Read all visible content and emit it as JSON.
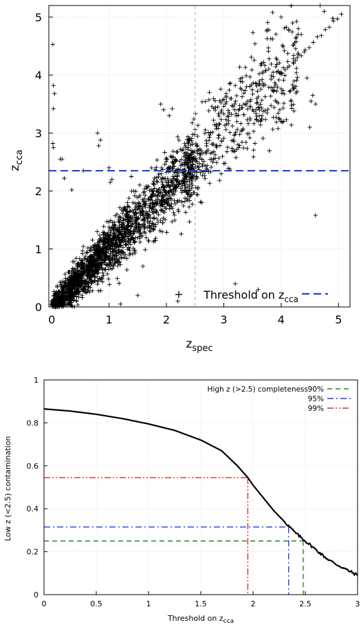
{
  "chart_data": [
    {
      "type": "scatter",
      "title": "",
      "xlabel": "z",
      "xlabel_sub": "spec",
      "ylabel": "z",
      "ylabel_sub": "cca",
      "xlim": [
        -0.05,
        5.2
      ],
      "ylim": [
        0,
        5.2
      ],
      "xticks": [
        "0",
        "1",
        "2",
        "3",
        "4",
        "5"
      ],
      "yticks": [
        "0",
        "1",
        "2",
        "3",
        "4",
        "5"
      ],
      "grid": true,
      "marker": "+",
      "vertical_reference_x": 2.5,
      "threshold_y": 2.35,
      "legend_position": "bottom-right",
      "series": [
        {
          "name": "Threshold on z",
          "name_sub": "cca",
          "color": "#1f3fe0",
          "style": "dashed",
          "description_points": "several thousand (z_spec, z_cca) points, clustered along z_cca ≈ z_spec with outliers"
        }
      ],
      "sample_points": [
        [
          0.02,
          4.53
        ],
        [
          0.03,
          3.82
        ],
        [
          0.05,
          3.68
        ],
        [
          0.03,
          3.42
        ],
        [
          0.02,
          2.82
        ],
        [
          0.03,
          2.75
        ],
        [
          0.18,
          2.55
        ],
        [
          0.15,
          2.55
        ],
        [
          0.8,
          3.0
        ],
        [
          0.85,
          2.88
        ],
        [
          0.82,
          2.78
        ],
        [
          0.22,
          2.22
        ],
        [
          0.35,
          2.02
        ],
        [
          0.55,
          2.35
        ],
        [
          1.0,
          2.4
        ],
        [
          1.05,
          2.2
        ],
        [
          1.02,
          2.15
        ],
        [
          1.9,
          3.5
        ],
        [
          1.95,
          3.4
        ],
        [
          2.1,
          3.42
        ],
        [
          2.05,
          3.3
        ],
        [
          2.75,
          3.7
        ],
        [
          3.1,
          3.85
        ],
        [
          3.2,
          3.82
        ],
        [
          3.85,
          5.08
        ],
        [
          4.0,
          5.0
        ],
        [
          4.3,
          4.8
        ],
        [
          4.35,
          4.7
        ],
        [
          4.68,
          5.2
        ],
        [
          4.75,
          5.1
        ],
        [
          4.3,
          4.35
        ],
        [
          4.25,
          4.25
        ],
        [
          4.45,
          3.95
        ],
        [
          4.55,
          3.65
        ],
        [
          4.52,
          3.55
        ],
        [
          4.6,
          3.5
        ],
        [
          4.0,
          3.2
        ],
        [
          4.5,
          3.1
        ],
        [
          4.2,
          4.9
        ],
        [
          4.4,
          4.4
        ],
        [
          4.9,
          4.98
        ],
        [
          5.05,
          5.05
        ],
        [
          4.6,
          1.58
        ],
        [
          3.6,
          0.3
        ],
        [
          3.2,
          0.4
        ],
        [
          2.2,
          0.1
        ],
        [
          1.5,
          0.2
        ],
        [
          1.2,
          0.05
        ]
      ]
    },
    {
      "type": "line",
      "title": "",
      "xlabel": "Threshold on z",
      "xlabel_sub": "cca",
      "ylabel": "Low z (<2.5) contamination",
      "xlim": [
        0,
        3
      ],
      "ylim": [
        0,
        1
      ],
      "xticks": [
        "0",
        "0.5",
        "1",
        "1.5",
        "2",
        "2.5",
        "3"
      ],
      "yticks": [
        "0",
        "0.2",
        "0.4",
        "0.6",
        "0.8",
        "1"
      ],
      "grid": true,
      "legend_position": "top-right",
      "legend_title": "High z (>2.5) completeness",
      "series": [
        {
          "name": "contamination",
          "color": "#000000",
          "x": [
            0,
            0.25,
            0.5,
            0.75,
            1.0,
            1.25,
            1.5,
            1.7,
            1.85,
            1.95,
            2.0,
            2.1,
            2.2,
            2.3,
            2.35,
            2.4,
            2.5,
            2.6,
            2.7,
            2.8,
            2.9,
            3.0
          ],
          "y": [
            0.865,
            0.855,
            0.84,
            0.82,
            0.795,
            0.765,
            0.72,
            0.67,
            0.6,
            0.545,
            0.51,
            0.45,
            0.39,
            0.34,
            0.315,
            0.29,
            0.25,
            0.21,
            0.17,
            0.14,
            0.115,
            0.09
          ]
        }
      ],
      "completeness_lines": [
        {
          "label": "90%",
          "threshold": 2.48,
          "contamination": 0.25,
          "color": "#2e7d32",
          "style": "dashed"
        },
        {
          "label": "95%",
          "threshold": 2.34,
          "contamination": 0.315,
          "color": "#1f3fe0",
          "style": "dash-dot"
        },
        {
          "label": "99%",
          "threshold": 1.95,
          "contamination": 0.545,
          "color": "#d62c2c",
          "style": "dash-dot-dot"
        }
      ]
    }
  ]
}
